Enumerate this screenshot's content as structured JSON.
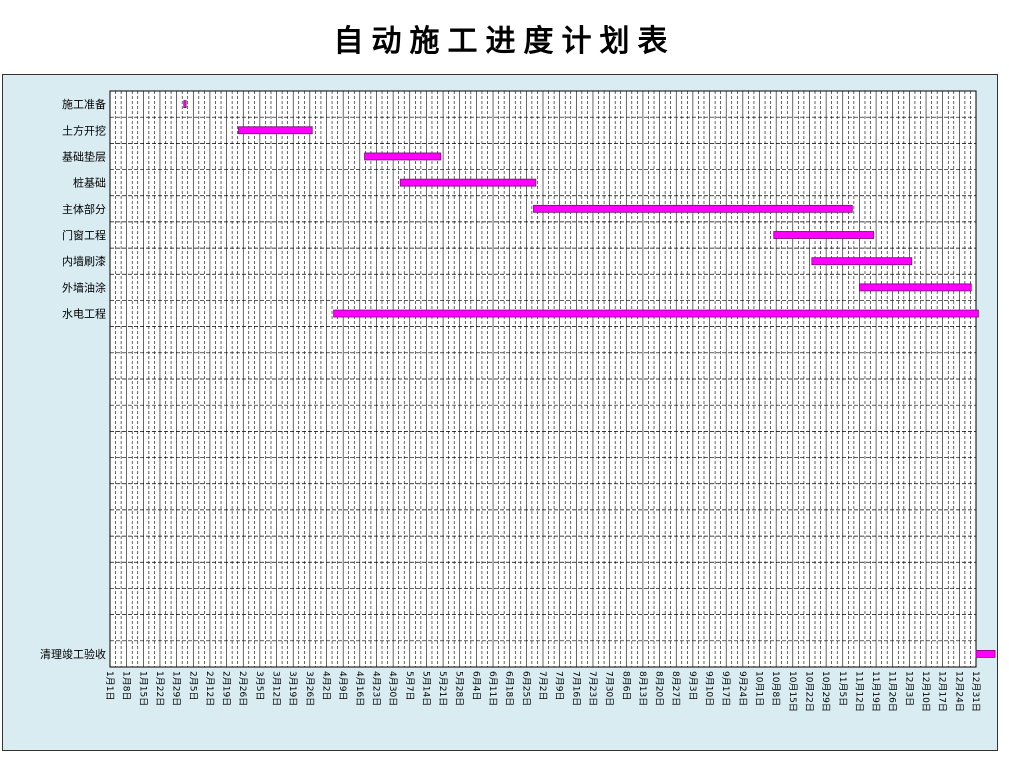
{
  "title": "自动施工进度计划表",
  "colors": {
    "bar": "#ff00ff",
    "bar_border": "#7a0a7a",
    "plot_bg": "#ffffff",
    "frame_bg": "#d9ecf2",
    "grid": "#000000"
  },
  "chart_data": {
    "type": "gantt",
    "title": "自动施工进度计划表",
    "x_axis": {
      "type": "date",
      "range": [
        "1月1日",
        "12月31日"
      ],
      "tick_interval_days": 7,
      "tick_labels": [
        "1月1日",
        "1月8日",
        "1月15日",
        "1月22日",
        "1月29日",
        "2月5日",
        "2月12日",
        "2月19日",
        "2月26日",
        "3月5日",
        "3月12日",
        "3月19日",
        "3月26日",
        "4月2日",
        "4月9日",
        "4月16日",
        "4月23日",
        "4月30日",
        "5月7日",
        "5月14日",
        "5月21日",
        "5月28日",
        "6月4日",
        "6月11日",
        "6月18日",
        "6月25日",
        "7月2日",
        "7月9日",
        "7月16日",
        "7月23日",
        "7月30日",
        "8月6日",
        "8月13日",
        "8月20日",
        "8月27日",
        "9月3日",
        "9月10日",
        "9月17日",
        "9月24日",
        "10月1日",
        "10月8日",
        "10月15日",
        "10月22日",
        "10月29日",
        "11月5日",
        "11月12日",
        "11月19日",
        "11月26日",
        "12月3日",
        "12月10日",
        "12月17日",
        "12月24日",
        "12月31日"
      ]
    },
    "grid": true,
    "rows": [
      "施工准备",
      "土方开挖",
      "基础垫层",
      "桩基础",
      "主体部分",
      "门窗工程",
      "内墙刷漆",
      "外墙油涂",
      "水电工程",
      "",
      "",
      "",
      "",
      "",
      "",
      "",
      "",
      "",
      "",
      "",
      "",
      "清理竣工验收"
    ],
    "tasks": [
      {
        "name": "施工准备",
        "row": 0,
        "start": "2月1日",
        "end": "2月1日"
      },
      {
        "name": "土方开挖",
        "row": 1,
        "start": "2月24日",
        "end": "3月26日"
      },
      {
        "name": "基础垫层",
        "row": 2,
        "start": "4月18日",
        "end": "5月19日"
      },
      {
        "name": "桩基础",
        "row": 3,
        "start": "5月3日",
        "end": "6月28日"
      },
      {
        "name": "主体部分",
        "row": 4,
        "start": "6月28日",
        "end": "11月8日"
      },
      {
        "name": "门窗工程",
        "row": 5,
        "start": "10月7日",
        "end": "11月17日"
      },
      {
        "name": "内墙刷漆",
        "row": 6,
        "start": "10月23日",
        "end": "12月3日"
      },
      {
        "name": "外墙油涂",
        "row": 7,
        "start": "11月12日",
        "end": "12月28日"
      },
      {
        "name": "水电工程",
        "row": 8,
        "start": "4月5日",
        "end": "12月31日"
      },
      {
        "name": "清理竣工验收",
        "row": 21,
        "start": "12月31日",
        "end": "1月7日"
      }
    ]
  }
}
